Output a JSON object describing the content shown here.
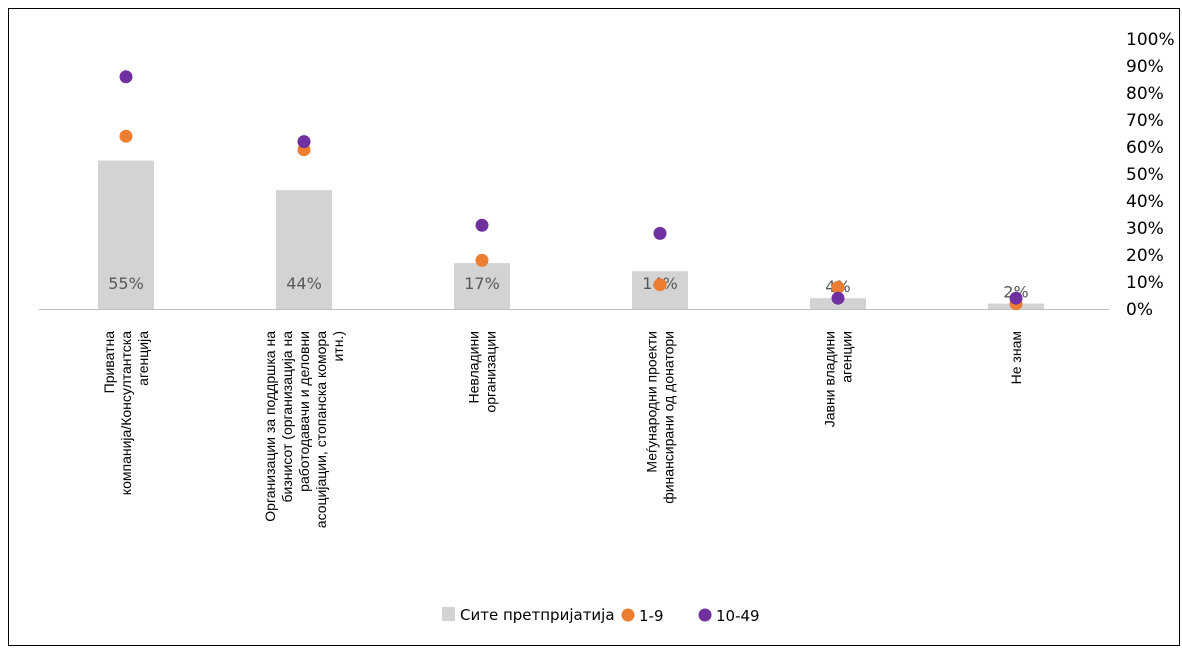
{
  "chart_data": {
    "type": "bar",
    "categories": [
      [
        "Приватна",
        "компанија/Консултантска",
        "агенција"
      ],
      [
        "Организации за поддршка на",
        "бизнисот (организација на",
        "работодавачи и деловни",
        "асоцијации, стопанска комора",
        "итн.)"
      ],
      [
        "Невладини",
        "организации"
      ],
      [
        "Меѓународни проекти",
        "финансирани од донатори"
      ],
      [
        "Јавни владини",
        "агенции"
      ],
      [
        "Не знам"
      ]
    ],
    "series": [
      {
        "name": "Сите претпријатија",
        "kind": "bar",
        "values": [
          55,
          44,
          17,
          14,
          4,
          2
        ],
        "color": "#d3d3d3"
      },
      {
        "name": "1-9",
        "kind": "dot",
        "values": [
          64,
          59,
          18,
          9,
          8,
          2
        ],
        "color": "#ed7d31"
      },
      {
        "name": "10-49",
        "kind": "dot",
        "values": [
          86,
          62,
          31,
          28,
          4,
          4
        ],
        "color": "#7030a0"
      }
    ],
    "data_labels": [
      "55%",
      "44%",
      "17%",
      "14%",
      "4%",
      "2%"
    ],
    "y_ticks": [
      "0%",
      "10%",
      "20%",
      "30%",
      "40%",
      "50%",
      "60%",
      "70%",
      "80%",
      "90%",
      "100%"
    ],
    "ylim": [
      0,
      100
    ],
    "y_axis_side": "right",
    "grid": false,
    "legend_position": "bottom"
  }
}
